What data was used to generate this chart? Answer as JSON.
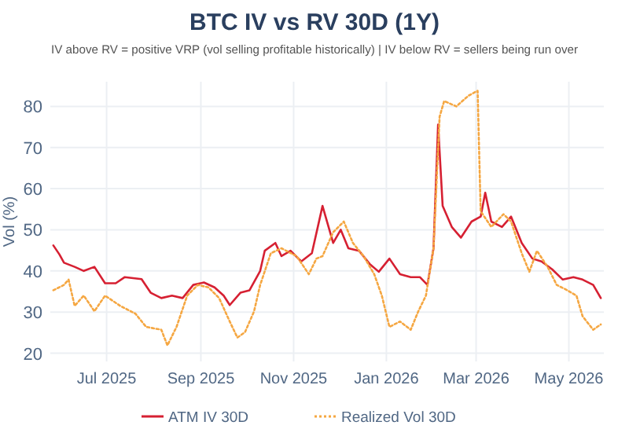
{
  "chart_data": {
    "type": "line",
    "title": "BTC IV vs RV 30D (1Y)",
    "subtitle": "IV above RV = positive VRP (vol selling profitable historically) | IV below RV = sellers being run over",
    "ylabel": "Vol (%)",
    "xlim": [
      "2025-05-25",
      "2026-05-24"
    ],
    "ylim": [
      18,
      86
    ],
    "xticks": [
      {
        "value": "2025-07-01",
        "label": "Jul 2025"
      },
      {
        "value": "2025-09-01",
        "label": "Sep 2025"
      },
      {
        "value": "2025-11-01",
        "label": "Nov 2025"
      },
      {
        "value": "2026-01-01",
        "label": "Jan 2026"
      },
      {
        "value": "2026-03-01",
        "label": "Mar 2026"
      },
      {
        "value": "2026-05-01",
        "label": "May 2026"
      }
    ],
    "yticks": [
      20,
      30,
      40,
      50,
      60,
      70,
      80
    ],
    "grid": true,
    "legend": "bottom",
    "series": [
      {
        "name": "ATM IV 30D",
        "color": "#d62032",
        "line_style": "solid",
        "x": [
          "2025-05-27",
          "2025-05-31",
          "2025-06-03",
          "2025-06-10",
          "2025-06-16",
          "2025-06-23",
          "2025-06-30",
          "2025-07-07",
          "2025-07-13",
          "2025-07-24",
          "2025-07-30",
          "2025-08-06",
          "2025-08-13",
          "2025-08-20",
          "2025-08-27",
          "2025-09-03",
          "2025-09-10",
          "2025-09-16",
          "2025-09-20",
          "2025-09-27",
          "2025-10-03",
          "2025-10-10",
          "2025-10-13",
          "2025-10-20",
          "2025-10-24",
          "2025-10-30",
          "2025-11-06",
          "2025-11-13",
          "2025-11-20",
          "2025-11-27",
          "2025-12-02",
          "2025-12-07",
          "2025-12-14",
          "2025-12-21",
          "2025-12-27",
          "2026-01-03",
          "2026-01-10",
          "2026-01-17",
          "2026-01-23",
          "2026-01-28",
          "2026-02-01",
          "2026-02-04",
          "2026-02-07",
          "2026-02-13",
          "2026-02-19",
          "2026-02-26",
          "2026-03-04",
          "2026-03-07",
          "2026-03-11",
          "2026-03-18",
          "2026-03-24",
          "2026-03-31",
          "2026-04-07",
          "2026-04-13",
          "2026-04-20",
          "2026-04-27",
          "2026-05-04",
          "2026-05-10",
          "2026-05-17",
          "2026-05-22"
        ],
        "values": [
          46.2,
          44,
          42,
          41,
          40,
          41,
          37,
          37,
          38.5,
          38,
          34.7,
          33.4,
          34,
          33.4,
          36.6,
          37.2,
          36,
          34,
          31.7,
          34.7,
          35.3,
          40,
          44.9,
          46.8,
          43.6,
          44.9,
          42.3,
          44.3,
          55.8,
          46.8,
          50,
          45.5,
          44.9,
          41.7,
          39.8,
          43,
          39.2,
          38.5,
          38.5,
          36.6,
          45.5,
          75.6,
          55.8,
          50.7,
          48.1,
          52,
          53.2,
          59,
          52,
          50.7,
          53.2,
          46.8,
          43,
          42.3,
          40.4,
          37.9,
          38.5,
          37.9,
          36.6,
          33.4
        ]
      },
      {
        "name": "Realized Vol 30D",
        "color": "#f5a742",
        "line_style": "dotted",
        "x": [
          "2025-05-27",
          "2025-06-03",
          "2025-06-06",
          "2025-06-10",
          "2025-06-16",
          "2025-06-23",
          "2025-06-30",
          "2025-07-10",
          "2025-07-20",
          "2025-07-27",
          "2025-08-06",
          "2025-08-10",
          "2025-08-16",
          "2025-08-23",
          "2025-08-30",
          "2025-09-06",
          "2025-09-13",
          "2025-09-20",
          "2025-09-25",
          "2025-09-30",
          "2025-10-06",
          "2025-10-10",
          "2025-10-17",
          "2025-10-24",
          "2025-11-03",
          "2025-11-11",
          "2025-11-16",
          "2025-11-20",
          "2025-11-27",
          "2025-12-04",
          "2025-12-10",
          "2025-12-17",
          "2025-12-24",
          "2025-12-29",
          "2026-01-03",
          "2026-01-10",
          "2026-01-17",
          "2026-01-22",
          "2026-01-27",
          "2026-02-01",
          "2026-02-05",
          "2026-02-08",
          "2026-02-16",
          "2026-02-24",
          "2026-03-02",
          "2026-03-04",
          "2026-03-11",
          "2026-03-19",
          "2026-03-24",
          "2026-03-31",
          "2026-04-05",
          "2026-04-10",
          "2026-04-17",
          "2026-04-23",
          "2026-04-30",
          "2026-05-06",
          "2026-05-10",
          "2026-05-17",
          "2026-05-22"
        ],
        "values": [
          35.3,
          36.6,
          37.9,
          31.5,
          34,
          30.2,
          34,
          31.5,
          29.6,
          26.4,
          25.7,
          21.9,
          26.4,
          34,
          36.6,
          36,
          33.4,
          27.7,
          23.8,
          25.1,
          30.2,
          36.6,
          44.3,
          45.5,
          43.6,
          39.2,
          43,
          43.6,
          49.4,
          52,
          46.8,
          43.6,
          39.2,
          34,
          26.4,
          27.7,
          25.7,
          30.2,
          34,
          45.5,
          77.5,
          81.3,
          80,
          82.6,
          83.8,
          54.5,
          50.7,
          53.8,
          52,
          44.3,
          39.8,
          44.9,
          41,
          36.6,
          35.3,
          34,
          29,
          25.7,
          27
        ]
      }
    ]
  }
}
